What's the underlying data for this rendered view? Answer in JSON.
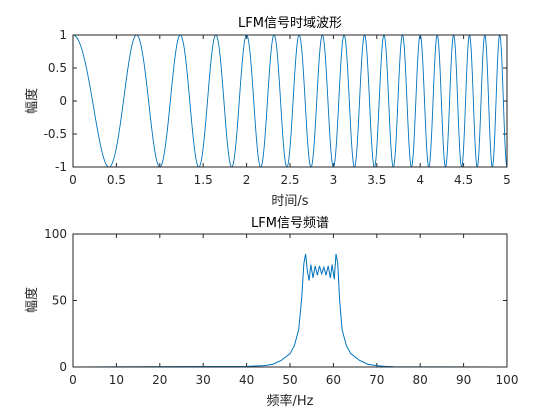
{
  "chart_data": [
    {
      "type": "line",
      "title": "LFM信号时域波形",
      "xlabel": "时间/s",
      "ylabel": "幅度",
      "xlim": [
        0,
        5
      ],
      "ylim": [
        -1,
        1
      ],
      "xticks": [
        "0",
        "0.5",
        "1",
        "1.5",
        "2",
        "2.5",
        "3",
        "3.5",
        "4",
        "4.5",
        "5"
      ],
      "yticks": [
        "-1",
        "-0.5",
        "0",
        "0.5",
        "1"
      ],
      "grid": false,
      "color": "#0072BD",
      "series": [
        {
          "signal": "cos(2*pi*(f0*t + k*t^2/2))",
          "f0": 1.0,
          "k": 1.0,
          "t_range": [
            0,
            5
          ]
        }
      ]
    },
    {
      "type": "line",
      "title": "LFM信号频谱",
      "xlabel": "频率/Hz",
      "ylabel": "幅度",
      "xlim": [
        0,
        100
      ],
      "ylim": [
        0,
        100
      ],
      "xticks": [
        "0",
        "10",
        "20",
        "30",
        "40",
        "50",
        "60",
        "70",
        "80",
        "90",
        "100"
      ],
      "yticks": [
        "0",
        "50",
        "100"
      ],
      "grid": false,
      "color": "#0072BD",
      "series": [
        {
          "points": [
            [
              0,
              0
            ],
            [
              40,
              0.5
            ],
            [
              44,
              1
            ],
            [
              46,
              2
            ],
            [
              48,
              5
            ],
            [
              50,
              10
            ],
            [
              51,
              16
            ],
            [
              52,
              28
            ],
            [
              52.7,
              52
            ],
            [
              53.2,
              78
            ],
            [
              53.6,
              85
            ],
            [
              54.0,
              72
            ],
            [
              54.4,
              65
            ],
            [
              54.8,
              77
            ],
            [
              55.3,
              67
            ],
            [
              55.8,
              76
            ],
            [
              56.3,
              69
            ],
            [
              56.8,
              76
            ],
            [
              57.3,
              70
            ],
            [
              57.8,
              75
            ],
            [
              58.3,
              69
            ],
            [
              58.8,
              76
            ],
            [
              59.3,
              67
            ],
            [
              59.7,
              77
            ],
            [
              60.2,
              66
            ],
            [
              60.6,
              85
            ],
            [
              61.0,
              78
            ],
            [
              61.4,
              52
            ],
            [
              62,
              28
            ],
            [
              63,
              16
            ],
            [
              64,
              10
            ],
            [
              66,
              5
            ],
            [
              68,
              2
            ],
            [
              70,
              1
            ],
            [
              72,
              0.5
            ],
            [
              74,
              0.2
            ],
            [
              100,
              0
            ]
          ]
        }
      ]
    }
  ]
}
